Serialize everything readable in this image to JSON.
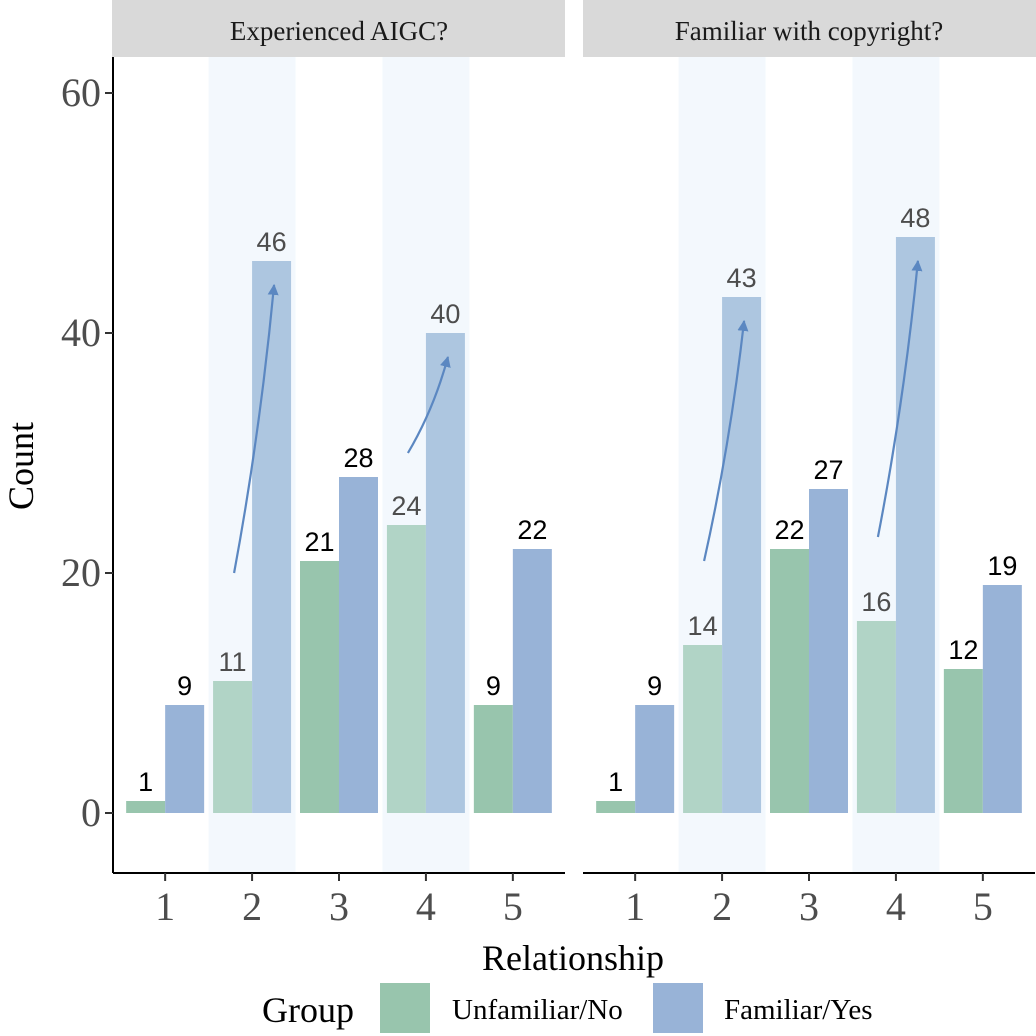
{
  "chart_data": {
    "type": "bar",
    "xlabel": "Relationship",
    "ylabel": "Count",
    "ylim": [
      -5,
      63
    ],
    "yticks": [
      0,
      20,
      40,
      60
    ],
    "categories": [
      "1",
      "2",
      "3",
      "4",
      "5"
    ],
    "highlighted_categories": [
      "2",
      "4"
    ],
    "legend": {
      "title": "Group",
      "position": "bottom",
      "entries": [
        "Unfamiliar/No",
        "Familiar/Yes"
      ]
    },
    "colors": {
      "unfamiliar": "#98c5ad",
      "familiar": "#98b3d7",
      "unfamiliar_highlight": "#b1d4c6",
      "familiar_highlight": "#adc6e0",
      "highlight_band": "#f3f8fd",
      "arrow": "#5b87c1",
      "strip": "#d9d9d9"
    },
    "panels": [
      {
        "title": "Experienced AIGC?",
        "series": [
          {
            "name": "Unfamiliar/No",
            "values": [
              1,
              11,
              21,
              24,
              9
            ]
          },
          {
            "name": "Familiar/Yes",
            "values": [
              9,
              46,
              28,
              40,
              22
            ]
          }
        ],
        "arrows": [
          {
            "category": "2",
            "from": 20,
            "to": 44
          },
          {
            "category": "4",
            "from": 30,
            "to": 38
          }
        ]
      },
      {
        "title": "Familiar with copyright?",
        "series": [
          {
            "name": "Unfamiliar/No",
            "values": [
              1,
              14,
              22,
              16,
              12
            ]
          },
          {
            "name": "Familiar/Yes",
            "values": [
              9,
              43,
              27,
              48,
              19
            ]
          }
        ],
        "arrows": [
          {
            "category": "2",
            "from": 21,
            "to": 41
          },
          {
            "category": "4",
            "from": 23,
            "to": 46
          }
        ]
      }
    ]
  }
}
